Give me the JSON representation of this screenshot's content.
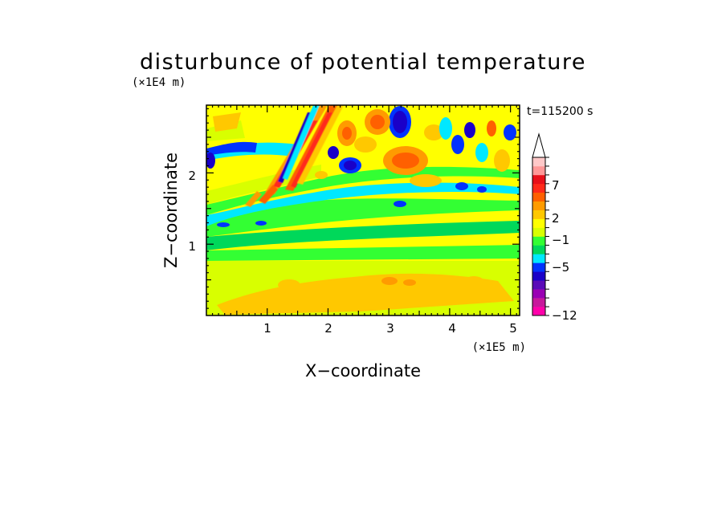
{
  "chart_data": {
    "type": "heatmap",
    "title": "disturbunce of potential temperature",
    "xlabel": "X−coordinate",
    "ylabel": "Z−coordinate",
    "x_unit": "(×1E5 m)",
    "z_unit": "(×1E4 m)",
    "time_label": "t=115200 s",
    "xlim": [
      0,
      5.15
    ],
    "ylim": [
      0,
      2.95
    ],
    "x_ticks": [
      "1",
      "2",
      "3",
      "4",
      "5"
    ],
    "y_ticks": [
      "1",
      "2"
    ],
    "colorbar": {
      "colors": [
        "#ff00aa",
        "#c8189c",
        "#9a00b4",
        "#5a0bb8",
        "#1a00c8",
        "#0033ff",
        "#00e8ff",
        "#00d85a",
        "#33ff33",
        "#d8ff00",
        "#ffff00",
        "#ffc800",
        "#ff9b00",
        "#ff6000",
        "#ff2a1a",
        "#e8101a",
        "#ff9898",
        "#ffc8c8"
      ],
      "tick_labels": [
        "−12",
        "−5",
        "−1",
        "2",
        "7"
      ],
      "extend_top": true
    }
  }
}
